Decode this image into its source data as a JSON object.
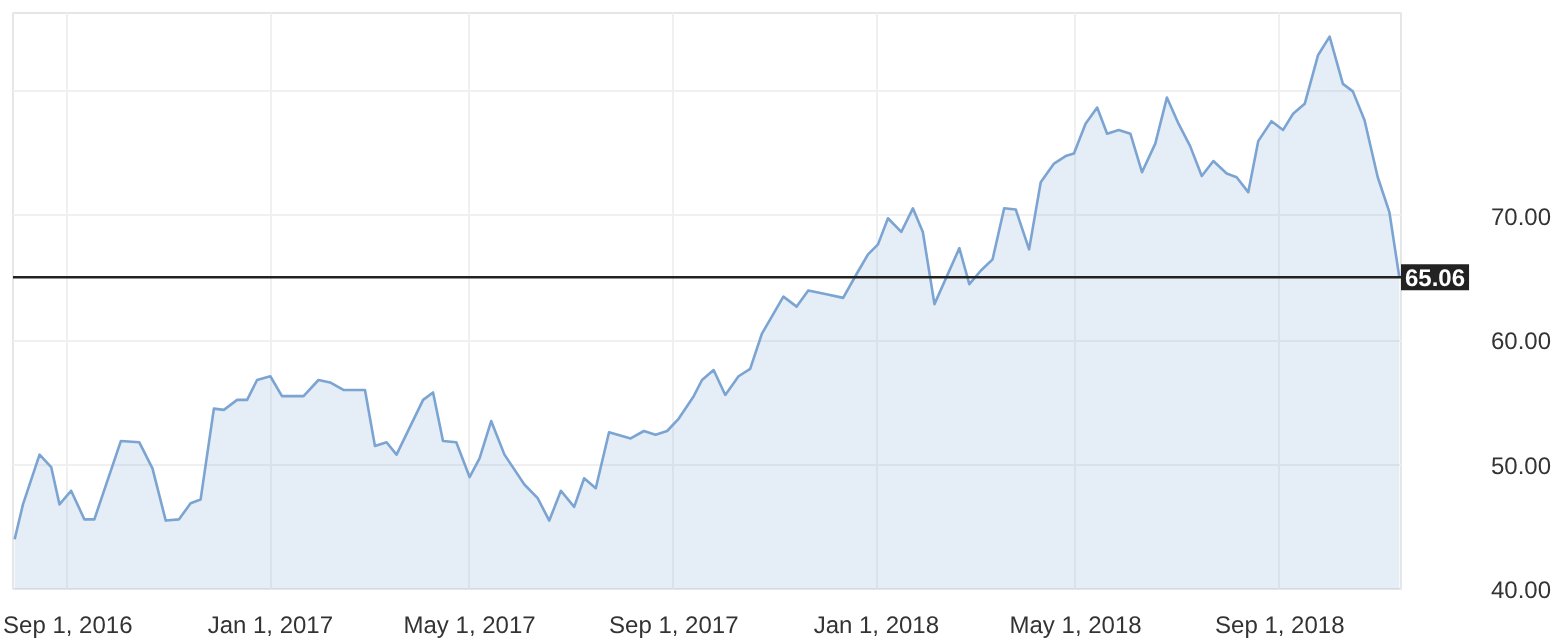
{
  "chart_data": {
    "type": "area",
    "x": [
      "2016-07-31",
      "2016-08-05",
      "2016-08-15",
      "2016-08-22",
      "2016-08-27",
      "2016-09-03",
      "2016-09-11",
      "2016-09-17",
      "2016-10-03",
      "2016-10-14",
      "2016-10-22",
      "2016-10-30",
      "2016-11-07",
      "2016-11-14",
      "2016-11-20",
      "2016-11-28",
      "2016-12-04",
      "2016-12-12",
      "2016-12-18",
      "2016-12-24",
      "2017-01-01",
      "2017-01-08",
      "2017-01-21",
      "2017-01-30",
      "2017-02-06",
      "2017-02-14",
      "2017-02-27",
      "2017-03-05",
      "2017-03-12",
      "2017-03-18",
      "2017-04-03",
      "2017-04-09",
      "2017-04-15",
      "2017-04-23",
      "2017-05-01",
      "2017-05-07",
      "2017-05-14",
      "2017-05-22",
      "2017-06-03",
      "2017-06-11",
      "2017-06-18",
      "2017-06-25",
      "2017-07-03",
      "2017-07-09",
      "2017-07-16",
      "2017-07-24",
      "2017-08-06",
      "2017-08-14",
      "2017-08-21",
      "2017-08-28",
      "2017-09-04",
      "2017-09-13",
      "2017-09-18",
      "2017-09-25",
      "2017-10-02",
      "2017-10-10",
      "2017-10-17",
      "2017-10-24",
      "2017-11-06",
      "2017-11-14",
      "2017-11-21",
      "2017-12-02",
      "2017-12-12",
      "2017-12-20",
      "2017-12-27",
      "2018-01-02",
      "2018-01-08",
      "2018-01-16",
      "2018-01-23",
      "2018-01-29",
      "2018-02-05",
      "2018-02-20",
      "2018-02-26",
      "2018-03-05",
      "2018-03-12",
      "2018-03-19",
      "2018-03-26",
      "2018-04-03",
      "2018-04-10",
      "2018-04-18",
      "2018-04-25",
      "2018-04-30",
      "2018-05-07",
      "2018-05-14",
      "2018-05-20",
      "2018-05-27",
      "2018-06-03",
      "2018-06-10",
      "2018-06-18",
      "2018-06-25",
      "2018-07-02",
      "2018-07-09",
      "2018-07-16",
      "2018-07-23",
      "2018-07-31",
      "2018-08-06",
      "2018-08-13",
      "2018-08-19",
      "2018-08-27",
      "2018-09-03",
      "2018-09-09",
      "2018-09-16",
      "2018-09-24",
      "2018-10-01",
      "2018-10-09",
      "2018-10-15",
      "2018-10-22",
      "2018-10-30",
      "2018-11-06",
      "2018-11-12"
    ],
    "series": [
      {
        "color": "#7ba4d2",
        "values": [
          44.0,
          46.8,
          50.8,
          49.8,
          46.8,
          47.9,
          45.6,
          45.6,
          51.9,
          51.8,
          49.7,
          45.5,
          45.6,
          46.9,
          47.2,
          54.5,
          54.4,
          55.2,
          55.2,
          56.8,
          57.1,
          55.5,
          55.5,
          56.8,
          56.6,
          56.0,
          56.0,
          51.5,
          51.8,
          50.8,
          55.2,
          55.8,
          51.9,
          51.8,
          49.0,
          50.5,
          53.5,
          50.8,
          48.4,
          47.3,
          45.5,
          47.9,
          46.6,
          48.9,
          48.1,
          52.6,
          52.1,
          52.7,
          52.4,
          52.7,
          53.7,
          55.5,
          56.8,
          57.6,
          55.6,
          57.1,
          57.7,
          60.5,
          63.5,
          62.7,
          64.0,
          63.7,
          63.4,
          65.3,
          66.9,
          67.7,
          69.8,
          68.7,
          70.6,
          68.7,
          62.9,
          67.4,
          64.5,
          65.6,
          66.5,
          70.6,
          70.5,
          67.3,
          72.7,
          74.2,
          74.8,
          75.0,
          77.4,
          78.7,
          76.6,
          76.9,
          76.6,
          73.5,
          75.8,
          79.5,
          77.4,
          75.6,
          73.2,
          74.4,
          73.4,
          73.1,
          71.9,
          76.0,
          77.6,
          76.9,
          78.2,
          79.0,
          82.9,
          84.4,
          80.6,
          80.0,
          77.7,
          73.1,
          70.3,
          65.06
        ]
      }
    ],
    "xlim": [
      "2016-07-30",
      "2018-11-13"
    ],
    "xticks": [
      {
        "value": "2016-09-01",
        "label": "Sep 1, 2016"
      },
      {
        "value": "2017-01-01",
        "label": "Jan 1, 2017"
      },
      {
        "value": "2017-05-01",
        "label": "May 1, 2017"
      },
      {
        "value": "2017-09-01",
        "label": "Sep 1, 2017"
      },
      {
        "value": "2018-01-01",
        "label": "Jan 1, 2018"
      },
      {
        "value": "2018-05-01",
        "label": "May 1, 2018"
      },
      {
        "value": "2018-09-01",
        "label": "Sep 1, 2018"
      }
    ],
    "ylim": [
      40,
      86.3
    ],
    "yticks": [
      {
        "value": 40,
        "label": "40.00"
      },
      {
        "value": 50,
        "label": "50.00"
      },
      {
        "value": 60,
        "label": "60.00"
      },
      {
        "value": 70,
        "label": "70.00"
      },
      {
        "value": 80,
        "label": null
      }
    ],
    "ref_lines": [
      {
        "axis": "y",
        "value": 65.06,
        "label": "65.06",
        "color": "#222222"
      }
    ],
    "grid": true
  }
}
